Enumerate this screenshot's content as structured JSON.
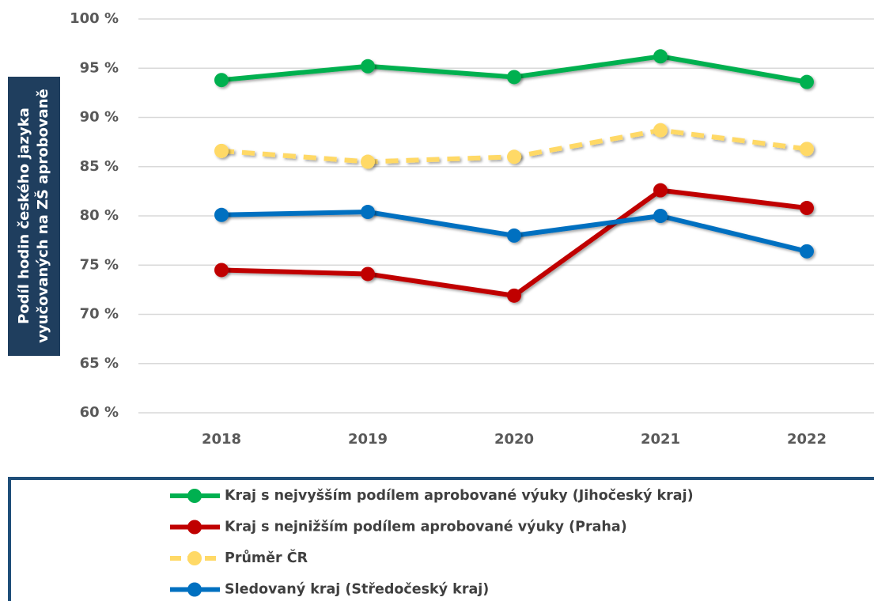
{
  "chart_data": {
    "type": "line",
    "y_label": [
      "Podíl hodin českého jazyka",
      "vyučovaných na ZŠ aprobovaně"
    ],
    "categories": [
      "2018",
      "2019",
      "2020",
      "2021",
      "2022"
    ],
    "series": [
      {
        "name": "Kraj s nejvyšším podílem aprobované výuky (Jihočeský kraj)",
        "color": "#00b050",
        "dashed": false,
        "values": [
          93.8,
          95.2,
          94.1,
          96.2,
          93.6
        ]
      },
      {
        "name": "Kraj s nejnižším podílem aprobované výuky (Praha)",
        "color": "#c00000",
        "dashed": false,
        "values": [
          74.5,
          74.1,
          71.9,
          82.6,
          80.8
        ]
      },
      {
        "name": "Průměr ČR",
        "color": "#ffd966",
        "dashed": true,
        "values": [
          86.6,
          85.5,
          86.0,
          88.7,
          86.8
        ]
      },
      {
        "name": "Sledovaný kraj (Středočeský kraj)",
        "color": "#0070c0",
        "dashed": false,
        "values": [
          80.1,
          80.4,
          78.0,
          80.0,
          76.4
        ]
      }
    ],
    "ylim": [
      60,
      100
    ],
    "yticks": [
      {
        "value": 60,
        "label": "60 %"
      },
      {
        "value": 65,
        "label": "65 %"
      },
      {
        "value": 70,
        "label": "70 %"
      },
      {
        "value": 75,
        "label": "75 %"
      },
      {
        "value": 80,
        "label": "80 %"
      },
      {
        "value": 85,
        "label": "85 %"
      },
      {
        "value": 90,
        "label": "90 %"
      },
      {
        "value": 95,
        "label": "95 %"
      },
      {
        "value": 100,
        "label": "100 %"
      }
    ],
    "grid": true
  }
}
